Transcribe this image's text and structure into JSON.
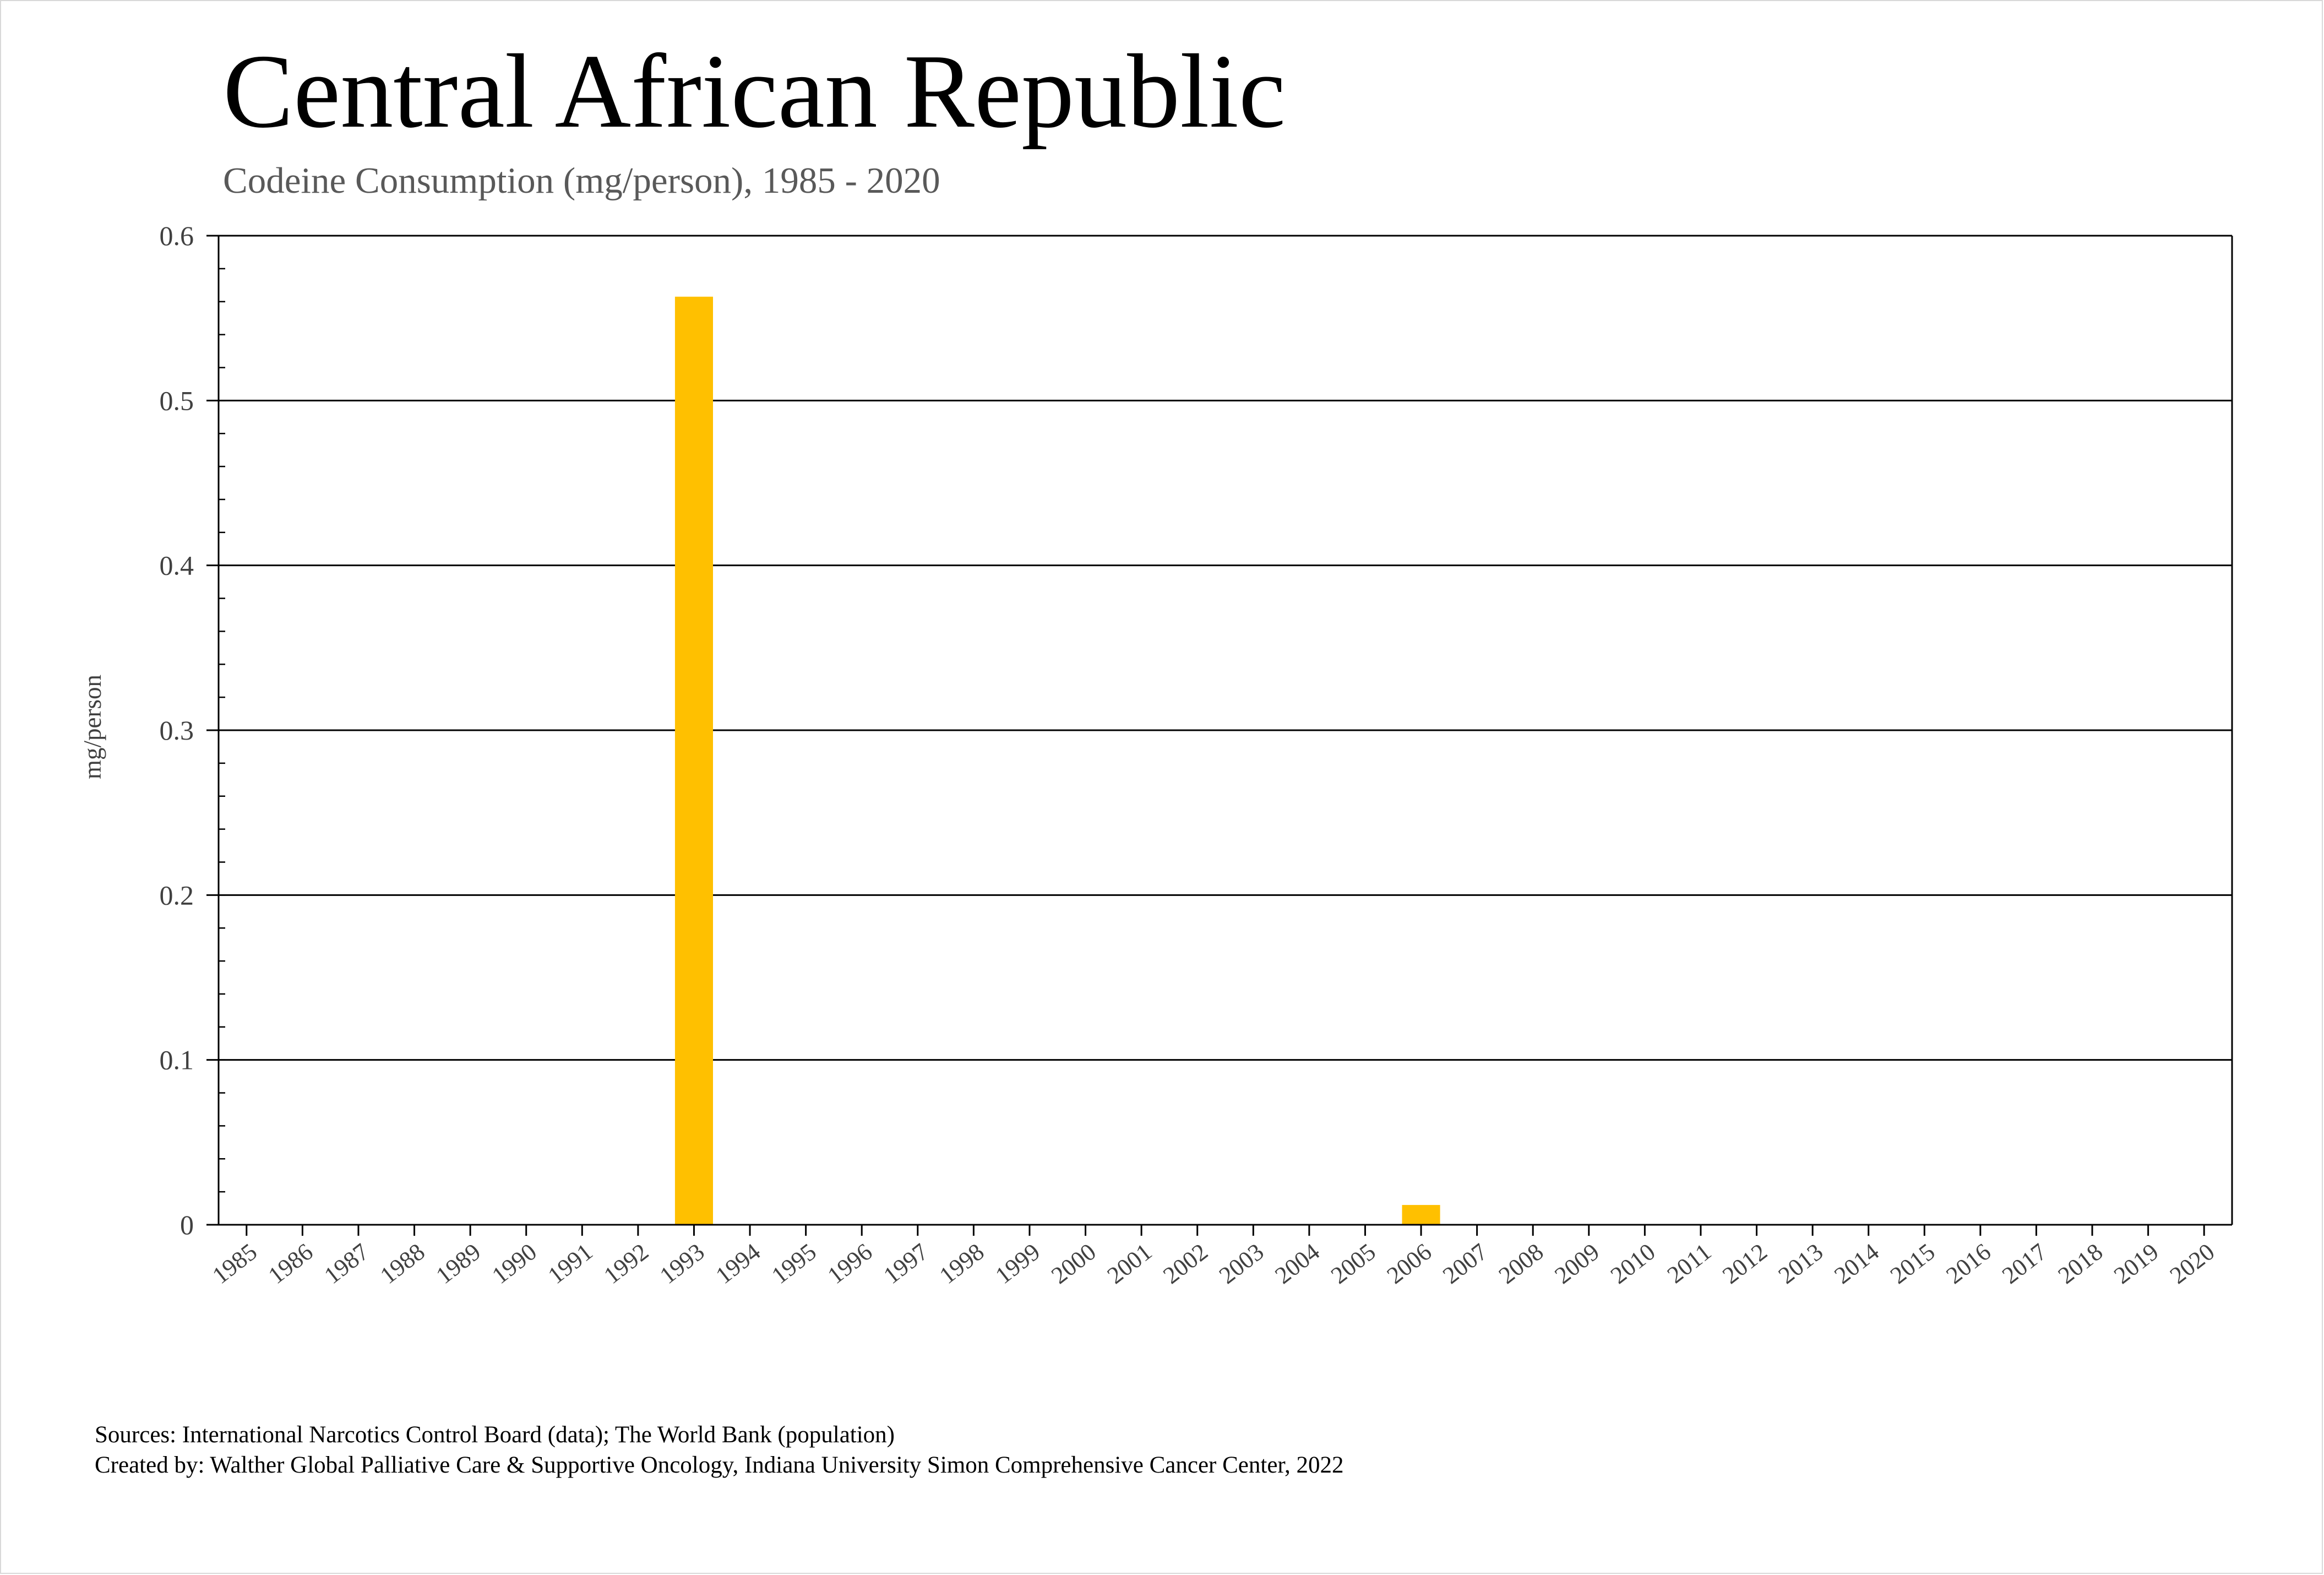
{
  "title": "Central African Republic",
  "subtitle": "Codeine Consumption (mg/person), 1985 - 2020",
  "footer": {
    "sources": "Sources: International Narcotics Control Board (data); The World Bank (population)",
    "created_by": "Created by: Walther Global Palliative Care & Supportive Oncology, Indiana University Simon Comprehensive Cancer Center, 2022"
  },
  "colors": {
    "bar": "#FFC000",
    "grid": "#000000",
    "axis_text": "#404040"
  },
  "chart_data": {
    "type": "bar",
    "title": "Central African Republic",
    "subtitle": "Codeine Consumption (mg/person), 1985 - 2020",
    "xlabel": "",
    "ylabel": "mg/person",
    "ylim": [
      0,
      0.6
    ],
    "yticks": [
      "0",
      "0.1",
      "0.2",
      "0.3",
      "0.4",
      "0.5",
      "0.6"
    ],
    "grid": true,
    "categories": [
      "1985",
      "1986",
      "1987",
      "1988",
      "1989",
      "1990",
      "1991",
      "1992",
      "1993",
      "1994",
      "1995",
      "1996",
      "1997",
      "1998",
      "1999",
      "2000",
      "2001",
      "2002",
      "2003",
      "2004",
      "2005",
      "2006",
      "2007",
      "2008",
      "2009",
      "2010",
      "2011",
      "2012",
      "2013",
      "2014",
      "2015",
      "2016",
      "2017",
      "2018",
      "2019",
      "2020"
    ],
    "values": [
      0,
      0,
      0,
      0,
      0,
      0,
      0,
      0,
      0.563,
      0,
      0,
      0,
      0,
      0,
      0,
      0,
      0,
      0,
      0,
      0,
      0,
      0.012,
      0,
      0,
      0,
      0,
      0,
      0,
      0,
      0,
      0,
      0,
      0,
      0,
      0,
      0
    ]
  }
}
